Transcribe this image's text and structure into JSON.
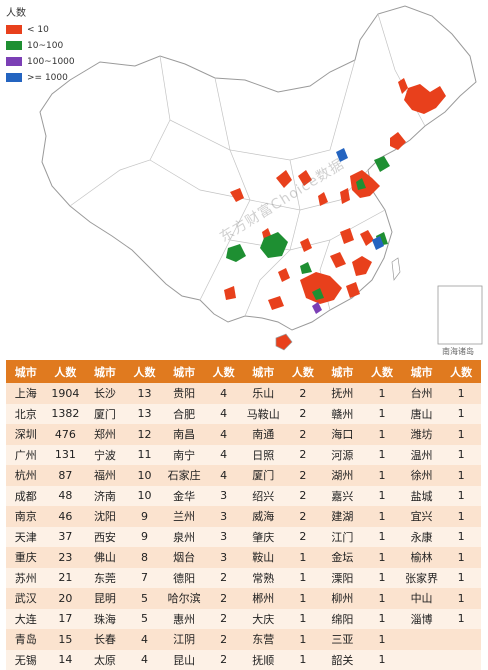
{
  "legend": {
    "title": "人数",
    "items": [
      {
        "label": "< 10",
        "color": "#e8401c"
      },
      {
        "label": "10~100",
        "color": "#1e8f32"
      },
      {
        "label": "100~1000",
        "color": "#7b3fb5"
      },
      {
        "label": ">= 1000",
        "color": "#2464c0"
      }
    ]
  },
  "map_note": "南海诸岛",
  "watermark": "东方财富Choice数据",
  "table": {
    "headers": [
      "城市",
      "人数",
      "城市",
      "人数",
      "城市",
      "人数",
      "城市",
      "人数",
      "城市",
      "人数",
      "城市",
      "人数"
    ],
    "rows": [
      [
        "上海",
        "1904",
        "长沙",
        "13",
        "贵阳",
        "4",
        "乐山",
        "2",
        "抚州",
        "1",
        "台州",
        "1"
      ],
      [
        "北京",
        "1382",
        "厦门",
        "13",
        "合肥",
        "4",
        "马鞍山",
        "2",
        "赣州",
        "1",
        "唐山",
        "1"
      ],
      [
        "深圳",
        "476",
        "郑州",
        "12",
        "南昌",
        "4",
        "南通",
        "2",
        "海口",
        "1",
        "潍坊",
        "1"
      ],
      [
        "广州",
        "131",
        "宁波",
        "11",
        "南宁",
        "4",
        "日照",
        "2",
        "河源",
        "1",
        "温州",
        "1"
      ],
      [
        "杭州",
        "87",
        "福州",
        "10",
        "石家庄",
        "4",
        "厦门",
        "2",
        "湖州",
        "1",
        "徐州",
        "1"
      ],
      [
        "成都",
        "48",
        "济南",
        "10",
        "金华",
        "3",
        "绍兴",
        "2",
        "嘉兴",
        "1",
        "盐城",
        "1"
      ],
      [
        "南京",
        "46",
        "沈阳",
        "9",
        "兰州",
        "3",
        "威海",
        "2",
        "建湖",
        "1",
        "宜兴",
        "1"
      ],
      [
        "天津",
        "37",
        "西安",
        "9",
        "泉州",
        "3",
        "肇庆",
        "2",
        "江门",
        "1",
        "永康",
        "1"
      ],
      [
        "重庆",
        "23",
        "佛山",
        "8",
        "烟台",
        "3",
        "鞍山",
        "1",
        "金坛",
        "1",
        "榆林",
        "1"
      ],
      [
        "苏州",
        "21",
        "东莞",
        "7",
        "德阳",
        "2",
        "常熟",
        "1",
        "溧阳",
        "1",
        "张家界",
        "1"
      ],
      [
        "武汉",
        "20",
        "昆明",
        "5",
        "哈尔滨",
        "2",
        "郴州",
        "1",
        "柳州",
        "1",
        "中山",
        "1"
      ],
      [
        "大连",
        "17",
        "珠海",
        "5",
        "惠州",
        "2",
        "大庆",
        "1",
        "绵阳",
        "1",
        "淄博",
        "1"
      ],
      [
        "青岛",
        "15",
        "长春",
        "4",
        "江阴",
        "2",
        "东营",
        "1",
        "三亚",
        "1",
        "",
        ""
      ],
      [
        "无锡",
        "14",
        "太原",
        "4",
        "昆山",
        "2",
        "抚顺",
        "1",
        "韶关",
        "1",
        "",
        ""
      ]
    ]
  }
}
